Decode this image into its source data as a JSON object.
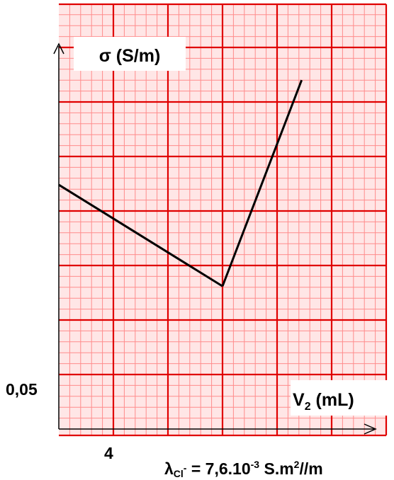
{
  "chart_data": {
    "type": "line",
    "title": "",
    "ylabel": "σ (S/m)",
    "xlabel_main": "V",
    "xlabel_sub": "2",
    "xlabel_unit": " (mL)",
    "x_tick_label": "4",
    "x_tick_value": 4,
    "y_tick_label": "0,05",
    "y_tick_value": 0.05,
    "xlim": [
      0,
      18
    ],
    "ylim": [
      0,
      0.35
    ],
    "grid": true,
    "series": [
      {
        "values": [
          {
            "x": 0,
            "y": 0.224
          },
          {
            "x": 12,
            "y": 0.131
          },
          {
            "x": 17.8,
            "y": 0.32
          }
        ]
      }
    ],
    "annotation": {
      "lambda": "λ",
      "species": "Cl",
      "charge": "-",
      "eq_value": " = 7,6.10",
      "exp1": "-3",
      "unit_main": " S.m",
      "exp2": "2",
      "unit_tail": "//m"
    },
    "colors": {
      "grid_major": "#e00000",
      "grid_minor": "#ff8c8c",
      "background": "#ffe6e6",
      "line": "#000000"
    }
  }
}
